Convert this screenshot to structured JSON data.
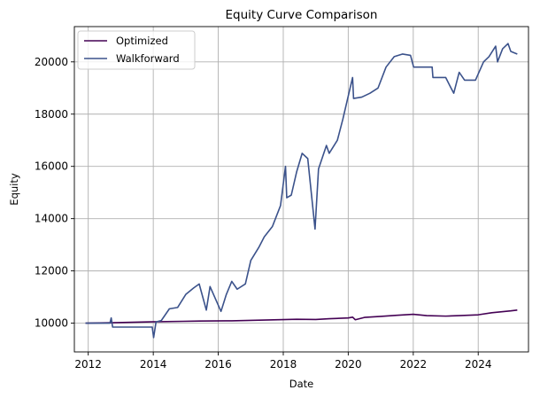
{
  "chart_data": {
    "type": "line",
    "title": "Equity Curve Comparison",
    "xlabel": "Date",
    "ylabel": "Equity",
    "x_type": "date",
    "xlim": [
      "2011-07-29",
      "2025-07-19"
    ],
    "ylim": [
      8900,
      21350
    ],
    "x_ticks": [
      {
        "label": "2012",
        "value": "2012-01-01"
      },
      {
        "label": "2014",
        "value": "2014-01-01"
      },
      {
        "label": "2016",
        "value": "2016-01-01"
      },
      {
        "label": "2018",
        "value": "2018-01-01"
      },
      {
        "label": "2020",
        "value": "2020-01-01"
      },
      {
        "label": "2022",
        "value": "2022-01-01"
      },
      {
        "label": "2024",
        "value": "2024-01-01"
      }
    ],
    "y_ticks": [
      {
        "label": "10000",
        "value": 10000
      },
      {
        "label": "12000",
        "value": 12000
      },
      {
        "label": "14000",
        "value": 14000
      },
      {
        "label": "16000",
        "value": 16000
      },
      {
        "label": "18000",
        "value": 18000
      },
      {
        "label": "20000",
        "value": 20000
      }
    ],
    "grid": true,
    "legend_position": "top-left",
    "series": [
      {
        "name": "Optimized",
        "color": "#440154",
        "points": [
          [
            "2011-12-01",
            10000
          ],
          [
            "2012-12-01",
            10020
          ],
          [
            "2013-12-01",
            10050
          ],
          [
            "2014-12-01",
            10070
          ],
          [
            "2015-06-01",
            10080
          ],
          [
            "2016-06-01",
            10090
          ],
          [
            "2017-06-01",
            10120
          ],
          [
            "2018-06-01",
            10150
          ],
          [
            "2019-01-01",
            10140
          ],
          [
            "2019-06-01",
            10170
          ],
          [
            "2020-01-01",
            10200
          ],
          [
            "2020-02-20",
            10230
          ],
          [
            "2020-03-20",
            10130
          ],
          [
            "2020-07-01",
            10220
          ],
          [
            "2021-01-01",
            10260
          ],
          [
            "2021-07-01",
            10300
          ],
          [
            "2022-01-01",
            10340
          ],
          [
            "2022-06-01",
            10290
          ],
          [
            "2023-01-01",
            10270
          ],
          [
            "2023-06-01",
            10290
          ],
          [
            "2024-01-01",
            10320
          ],
          [
            "2024-06-01",
            10400
          ],
          [
            "2025-01-01",
            10470
          ],
          [
            "2025-03-15",
            10500
          ]
        ]
      },
      {
        "name": "Walkforward",
        "color": "#3b528b",
        "points": [
          [
            "2011-12-01",
            10000
          ],
          [
            "2012-09-01",
            10000
          ],
          [
            "2012-09-15",
            10200
          ],
          [
            "2012-10-01",
            9850
          ],
          [
            "2013-01-01",
            9850
          ],
          [
            "2013-12-20",
            9850
          ],
          [
            "2014-01-05",
            9450
          ],
          [
            "2014-02-01",
            10050
          ],
          [
            "2014-04-01",
            10100
          ],
          [
            "2014-07-01",
            10550
          ],
          [
            "2014-10-01",
            10600
          ],
          [
            "2015-01-01",
            11100
          ],
          [
            "2015-04-01",
            11350
          ],
          [
            "2015-06-01",
            11500
          ],
          [
            "2015-08-20",
            10500
          ],
          [
            "2015-10-01",
            11400
          ],
          [
            "2016-02-01",
            10450
          ],
          [
            "2016-04-01",
            11100
          ],
          [
            "2016-06-01",
            11600
          ],
          [
            "2016-08-01",
            11300
          ],
          [
            "2016-11-01",
            11500
          ],
          [
            "2017-01-01",
            12400
          ],
          [
            "2017-04-01",
            12900
          ],
          [
            "2017-06-01",
            13300
          ],
          [
            "2017-09-01",
            13700
          ],
          [
            "2017-12-01",
            14500
          ],
          [
            "2018-01-26",
            16000
          ],
          [
            "2018-02-09",
            14800
          ],
          [
            "2018-04-01",
            14900
          ],
          [
            "2018-06-01",
            15800
          ],
          [
            "2018-08-01",
            16500
          ],
          [
            "2018-10-03",
            16300
          ],
          [
            "2018-12-24",
            13600
          ],
          [
            "2019-02-01",
            15900
          ],
          [
            "2019-05-01",
            16800
          ],
          [
            "2019-06-01",
            16500
          ],
          [
            "2019-09-01",
            17000
          ],
          [
            "2019-11-01",
            17800
          ],
          [
            "2020-02-19",
            19400
          ],
          [
            "2020-03-01",
            18600
          ],
          [
            "2020-06-01",
            18650
          ],
          [
            "2020-09-01",
            18800
          ],
          [
            "2020-12-01",
            19000
          ],
          [
            "2021-03-01",
            19800
          ],
          [
            "2021-06-01",
            20200
          ],
          [
            "2021-09-01",
            20300
          ],
          [
            "2021-12-01",
            20250
          ],
          [
            "2022-01-05",
            19800
          ],
          [
            "2022-08-01",
            19800
          ],
          [
            "2022-08-10",
            19400
          ],
          [
            "2023-01-01",
            19400
          ],
          [
            "2023-03-01",
            19000
          ],
          [
            "2023-04-01",
            18800
          ],
          [
            "2023-06-01",
            19600
          ],
          [
            "2023-08-01",
            19300
          ],
          [
            "2023-12-01",
            19300
          ],
          [
            "2024-03-01",
            20000
          ],
          [
            "2024-05-01",
            20200
          ],
          [
            "2024-07-15",
            20600
          ],
          [
            "2024-08-05",
            20000
          ],
          [
            "2024-10-01",
            20500
          ],
          [
            "2024-12-01",
            20700
          ],
          [
            "2025-01-01",
            20400
          ],
          [
            "2025-03-15",
            20300
          ]
        ]
      }
    ]
  }
}
